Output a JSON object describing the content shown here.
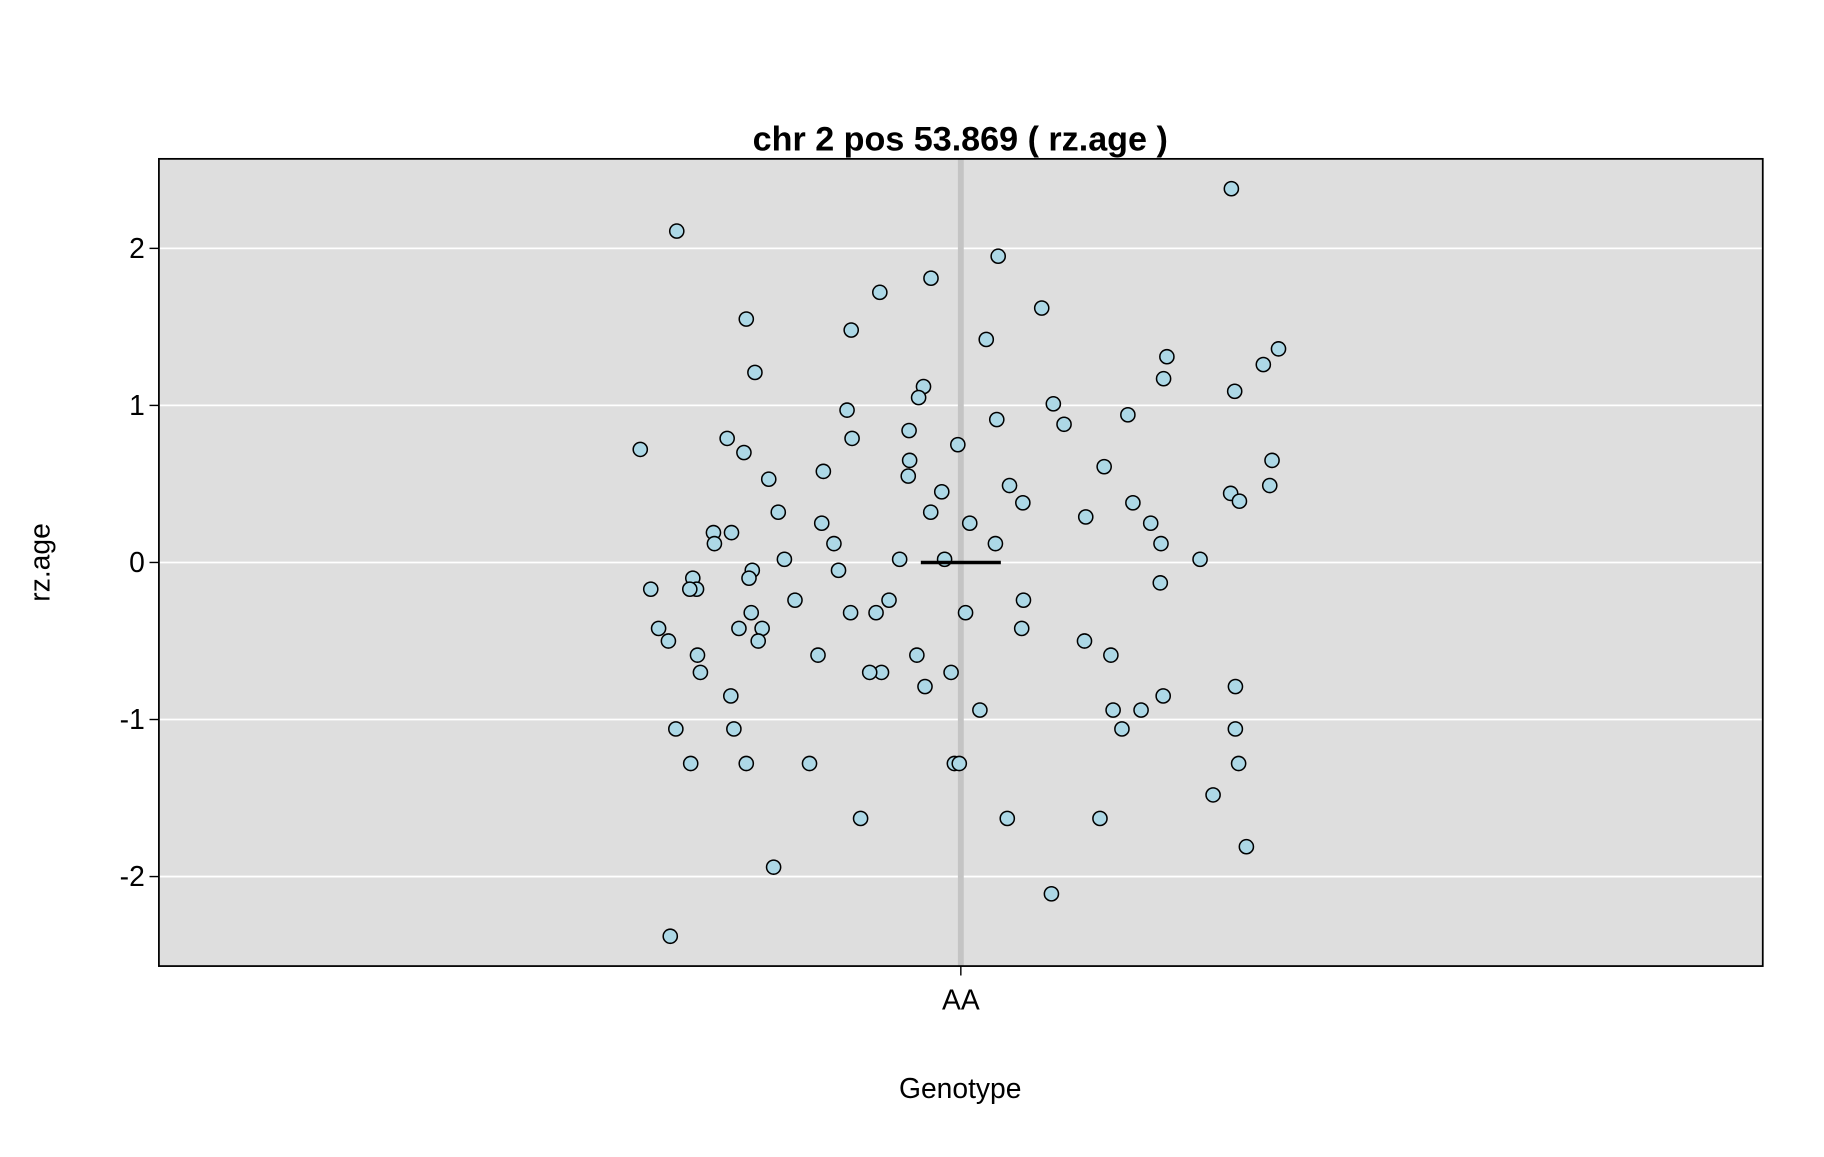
{
  "chart_data": {
    "type": "strip",
    "title": "chr 2 pos 53.869 ( rz.age )",
    "x_label": "Genotype",
    "y_label": "rz.age",
    "categories": [
      "AA"
    ],
    "series": [
      {
        "color": "#add8e6",
        "values": [
          2.38,
          2.11,
          1.95,
          1.72,
          1.81,
          1.62,
          1.55,
          1.48,
          1.42,
          1.26,
          1.31,
          1.21,
          1.36,
          1.17,
          1.12,
          1.09,
          1.05,
          1.01,
          0.97,
          0.94,
          0.91,
          0.88,
          0.84,
          0.79,
          0.79,
          0.75,
          0.72,
          0.7,
          0.65,
          0.65,
          0.61,
          0.58,
          0.55,
          0.53,
          0.49,
          0.49,
          0.44,
          0.45,
          0.38,
          0.38,
          0.39,
          0.32,
          0.32,
          0.29,
          0.25,
          0.25,
          0.25,
          0.19,
          0.19,
          0.12,
          0.12,
          0.12,
          0.12,
          0.02,
          0.02,
          0.02,
          0.02,
          -0.05,
          -0.05,
          -0.1,
          -0.1,
          -0.13,
          -0.17,
          -0.17,
          -0.17,
          -0.24,
          -0.24,
          -0.24,
          -0.32,
          -0.32,
          -0.32,
          -0.32,
          -0.42,
          -0.42,
          -0.42,
          -0.42,
          -0.5,
          -0.5,
          -0.5,
          -0.59,
          -0.59,
          -0.59,
          -0.59,
          -0.7,
          -0.7,
          -0.7,
          -0.7,
          -0.79,
          -0.79,
          -0.85,
          -0.85,
          -0.94,
          -0.94,
          -0.94,
          -1.06,
          -1.06,
          -1.06,
          -1.06,
          -1.28,
          -1.28,
          -1.28,
          -1.28,
          -1.28,
          -1.28,
          -1.48,
          -1.63,
          -1.63,
          -1.63,
          -1.81,
          -1.94,
          -2.11,
          -2.38
        ]
      }
    ],
    "mean": 0,
    "ylim": [
      -2.57,
      2.57
    ],
    "yticks": [
      -2,
      -1,
      0,
      1,
      2
    ],
    "grid": true
  }
}
